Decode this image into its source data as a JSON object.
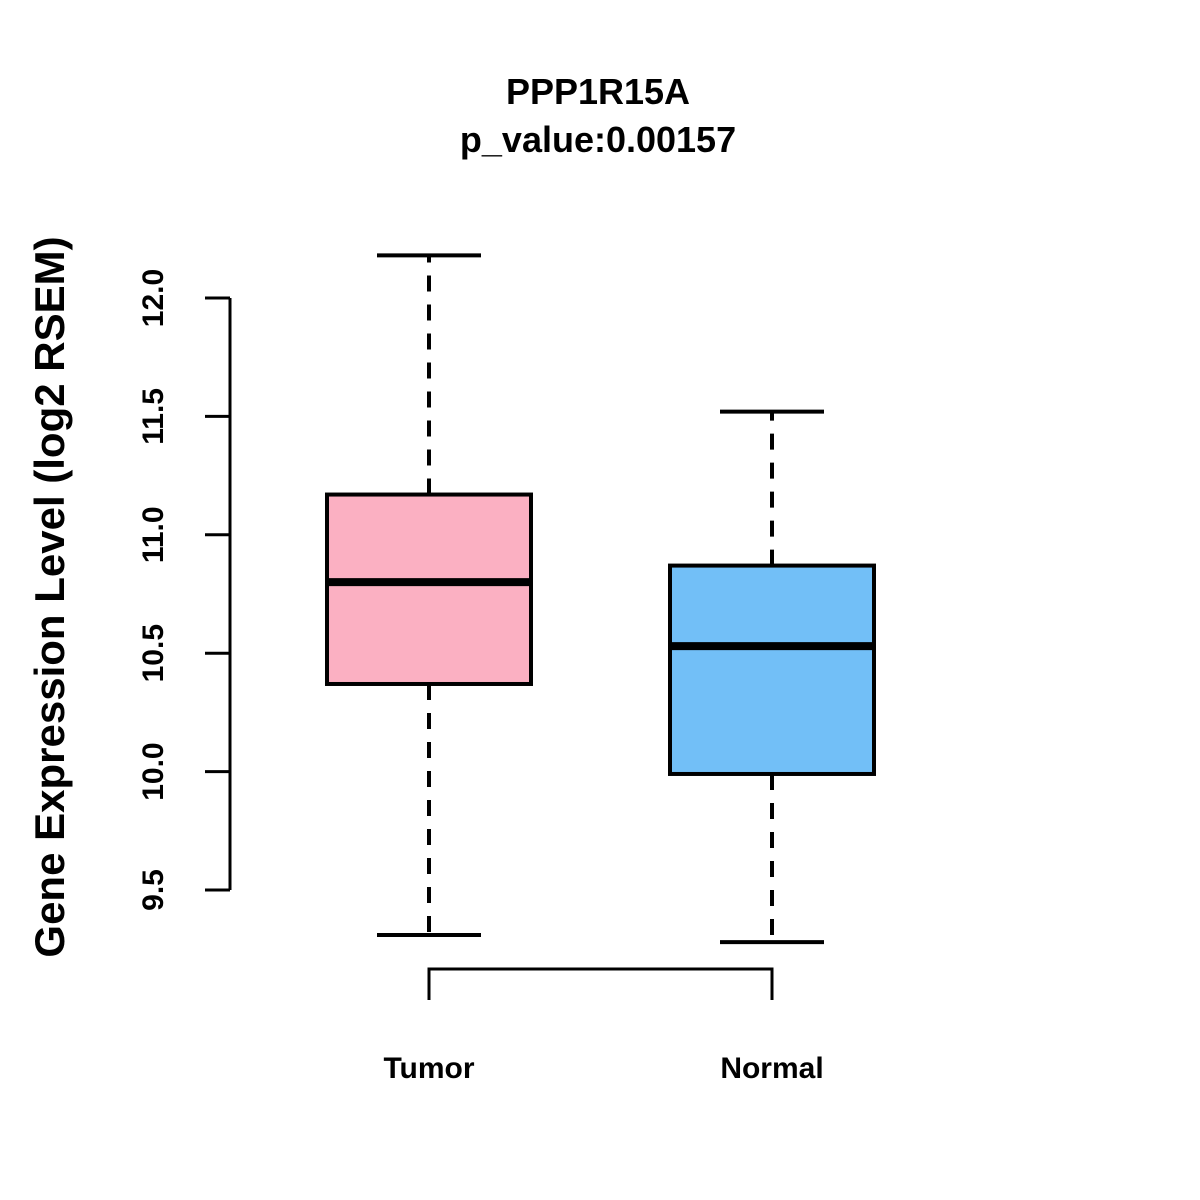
{
  "title": {
    "gene": "PPP1R15A",
    "p_value": "p_value:0.00157"
  },
  "chart_data": {
    "type": "boxplot",
    "title": "PPP1R15A",
    "subtitle": "p_value:0.00157",
    "xlabel": "",
    "ylabel": "Gene Expression Level (log2 RSEM)",
    "ylim": [
      9.5,
      12.0
    ],
    "yticks": {
      "values": [
        9.5,
        10.0,
        10.5,
        11.0,
        11.5,
        12.0
      ],
      "labels": [
        "9.5",
        "10.0",
        "10.5",
        "11.0",
        "11.5",
        "12.0"
      ]
    },
    "categories": [
      "Tumor",
      "Normal"
    ],
    "series": [
      {
        "name": "Tumor",
        "fill_color": "#FBB0C2",
        "whisker_low": 9.31,
        "q1": 10.37,
        "median": 10.8,
        "q3": 11.17,
        "whisker_high": 12.18
      },
      {
        "name": "Normal",
        "fill_color": "#72BFF7",
        "whisker_low": 9.28,
        "q1": 9.99,
        "median": 10.53,
        "q3": 10.87,
        "whisker_high": 11.52
      }
    ],
    "stroke_color": "#000000",
    "whisker_style": "dashed",
    "grid": false,
    "legend": "none"
  }
}
